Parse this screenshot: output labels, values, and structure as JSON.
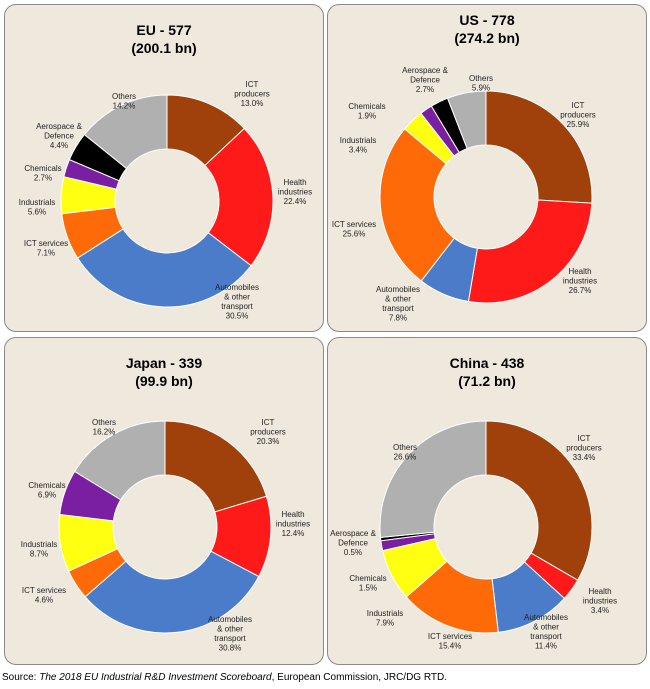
{
  "chart_data": [
    {
      "type": "pie",
      "title": "EU - 577",
      "subtitle": "(200.1 bn)",
      "series": [
        {
          "name": "ICT producers",
          "label_lines": [
            "ICT",
            "producers"
          ],
          "value": 13.0,
          "value_label": "13.0%",
          "color": "#a0400a"
        },
        {
          "name": "Health industries",
          "label_lines": [
            "Health",
            "industries"
          ],
          "value": 22.4,
          "value_label": "22.4%",
          "color": "#ff1a1a"
        },
        {
          "name": "Automobiles & other transport",
          "label_lines": [
            "Automobiles",
            "& other",
            "transport"
          ],
          "value": 30.5,
          "value_label": "30.5%",
          "color": "#4a7cc9"
        },
        {
          "name": "ICT services",
          "label_lines": [
            "ICT services"
          ],
          "value": 7.1,
          "value_label": "7.1%",
          "color": "#ff6a08"
        },
        {
          "name": "Industrials",
          "label_lines": [
            "Industrials"
          ],
          "value": 5.6,
          "value_label": "5.6%",
          "color": "#ffff12"
        },
        {
          "name": "Chemicals",
          "label_lines": [
            "Chemicals"
          ],
          "value": 2.7,
          "value_label": "2.7%",
          "color": "#7b1fa2"
        },
        {
          "name": "Aerospace & Defence",
          "label_lines": [
            "Aerospace &",
            "Defence"
          ],
          "value": 4.4,
          "value_label": "4.4%",
          "color": "#000000"
        },
        {
          "name": "Others",
          "label_lines": [
            "Others"
          ],
          "value": 14.2,
          "value_label": "14.2%",
          "color": "#b0b0b0"
        }
      ]
    },
    {
      "type": "pie",
      "title": "US - 778",
      "subtitle": "(274.2 bn)",
      "series": [
        {
          "name": "ICT producers",
          "label_lines": [
            "ICT",
            "producers"
          ],
          "value": 25.9,
          "value_label": "25.9%",
          "color": "#a0400a"
        },
        {
          "name": "Health industries",
          "label_lines": [
            "Health",
            "industries"
          ],
          "value": 26.7,
          "value_label": "26.7%",
          "color": "#ff1a1a"
        },
        {
          "name": "Automobiles & other transport",
          "label_lines": [
            "Automobiles",
            "& other",
            "transport"
          ],
          "value": 7.8,
          "value_label": "7.8%",
          "color": "#4a7cc9"
        },
        {
          "name": "ICT services",
          "label_lines": [
            "ICT services"
          ],
          "value": 25.6,
          "value_label": "25.6%",
          "color": "#ff6a08"
        },
        {
          "name": "Industrials",
          "label_lines": [
            "Industrials"
          ],
          "value": 3.4,
          "value_label": "3.4%",
          "color": "#ffff12"
        },
        {
          "name": "Chemicals",
          "label_lines": [
            "Chemicals"
          ],
          "value": 1.9,
          "value_label": "1.9%",
          "color": "#7b1fa2"
        },
        {
          "name": "Aerospace & Defence",
          "label_lines": [
            "Aerospace &",
            "Defence"
          ],
          "value": 2.7,
          "value_label": "2.7%",
          "color": "#000000"
        },
        {
          "name": "Others",
          "label_lines": [
            "Others"
          ],
          "value": 5.9,
          "value_label": "5.9%",
          "color": "#b0b0b0"
        }
      ]
    },
    {
      "type": "pie",
      "title": "Japan - 339",
      "subtitle": "(99.9 bn)",
      "series": [
        {
          "name": "ICT producers",
          "label_lines": [
            "ICT",
            "producers"
          ],
          "value": 20.3,
          "value_label": "20.3%",
          "color": "#a0400a"
        },
        {
          "name": "Health industries",
          "label_lines": [
            "Health",
            "industries"
          ],
          "value": 12.4,
          "value_label": "12.4%",
          "color": "#ff1a1a"
        },
        {
          "name": "Automobiles & other transport",
          "label_lines": [
            "Automobiles",
            "& other",
            "transport"
          ],
          "value": 30.8,
          "value_label": "30.8%",
          "color": "#4a7cc9"
        },
        {
          "name": "ICT services",
          "label_lines": [
            "ICT services"
          ],
          "value": 4.6,
          "value_label": "4.6%",
          "color": "#ff6a08"
        },
        {
          "name": "Industrials",
          "label_lines": [
            "Industrials"
          ],
          "value": 8.7,
          "value_label": "8.7%",
          "color": "#ffff12"
        },
        {
          "name": "Chemicals",
          "label_lines": [
            "Chemicals"
          ],
          "value": 6.9,
          "value_label": "6.9%",
          "color": "#7b1fa2"
        },
        {
          "name": "Others",
          "label_lines": [
            "Others"
          ],
          "value": 16.2,
          "value_label": "16.2%",
          "color": "#b0b0b0"
        }
      ]
    },
    {
      "type": "pie",
      "title": "China - 438",
      "subtitle": "(71.2 bn)",
      "series": [
        {
          "name": "ICT producers",
          "label_lines": [
            "ICT",
            "producers"
          ],
          "value": 33.4,
          "value_label": "33.4%",
          "color": "#a0400a"
        },
        {
          "name": "Health industries",
          "label_lines": [
            "Health",
            "industries"
          ],
          "value": 3.4,
          "value_label": "3.4%",
          "color": "#ff1a1a"
        },
        {
          "name": "Automobiles & other transport",
          "label_lines": [
            "Automobiles",
            "& other",
            "transport"
          ],
          "value": 11.4,
          "value_label": "11.4%",
          "color": "#4a7cc9"
        },
        {
          "name": "ICT services",
          "label_lines": [
            "ICT services"
          ],
          "value": 15.4,
          "value_label": "15.4%",
          "color": "#ff6a08"
        },
        {
          "name": "Industrials",
          "label_lines": [
            "Industrials"
          ],
          "value": 7.9,
          "value_label": "7.9%",
          "color": "#ffff12"
        },
        {
          "name": "Chemicals",
          "label_lines": [
            "Chemicals"
          ],
          "value": 1.5,
          "value_label": "1.5%",
          "color": "#7b1fa2"
        },
        {
          "name": "Aerospace & Defence",
          "label_lines": [
            "Aerospace &",
            "Defence"
          ],
          "value": 0.5,
          "value_label": "0.5%",
          "color": "#000000"
        },
        {
          "name": "Others",
          "label_lines": [
            "Others"
          ],
          "value": 26.6,
          "value_label": "26.6%",
          "color": "#b0b0b0"
        }
      ]
    }
  ],
  "source": {
    "prefix": "Source: ",
    "title": "The 2018 EU Industrial R&D Investment Scoreboard",
    "suffix": ", European Commission, JRC/DG RTD."
  }
}
